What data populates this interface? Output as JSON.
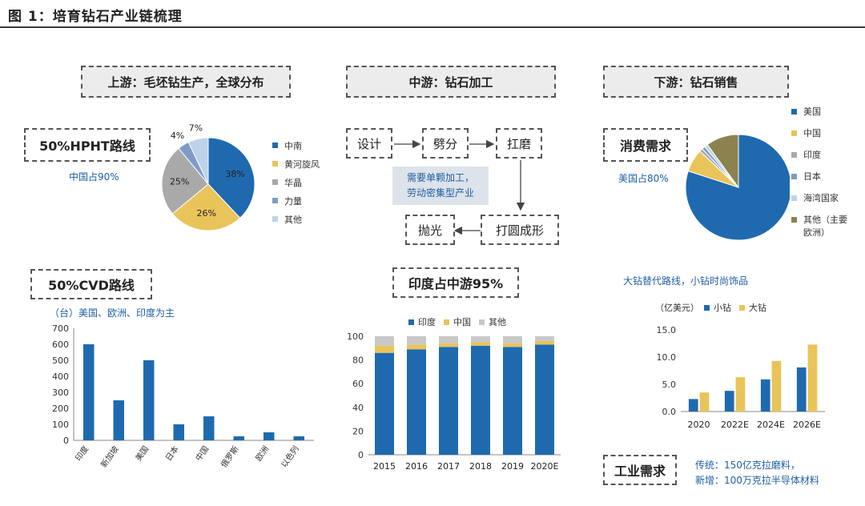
{
  "figure_title": "图 1：培育钻石产业链梳理",
  "upstream": {
    "header": "上游：毛坯钻生产，全球分布",
    "hpht_label": "50%HPHT路线",
    "hpht_note": "中国占90%",
    "cvd_label": "50%CVD路线",
    "cvd_note": "（台）美国、欧洲、印度为主"
  },
  "midstream": {
    "header": "中游：钻石加工",
    "steps": {
      "design": "设计",
      "cleave": "劈分",
      "grind": "扛磨",
      "round": "打圆成形",
      "polish": "抛光"
    },
    "note_line1": "需要单颗加工，",
    "note_line2": "劳动密集型产业",
    "india_label": "印度占中游95%"
  },
  "downstream": {
    "header": "下游：钻石销售",
    "consumer_label": "消费需求",
    "consumer_note": "美国占80%",
    "trend_note": "大钻替代路线，小钻时尚饰品",
    "industrial_label": "工业需求",
    "industrial_line1": "传统：150亿克拉磨料，",
    "industrial_line2": "新增：100万克拉半导体材料"
  },
  "colors": {
    "blue": "#1f6aaf",
    "yellow": "#e9c45a",
    "gray": "#a9a9a9",
    "steel": "#7e9cc7",
    "light": "#bdd3ea",
    "olive": "#8c8250",
    "accent_text": "#1f5fa6"
  },
  "chart_data": [
    {
      "id": "hpht-pie",
      "type": "pie",
      "labels": [
        "中南",
        "黄河旋风",
        "华晶",
        "力量",
        "其他"
      ],
      "values": [
        38,
        26,
        25,
        4,
        7
      ],
      "value_labels": [
        "38%",
        "26%",
        "25%",
        "4%",
        "7%"
      ],
      "colors": [
        "#1f6aaf",
        "#e9c45a",
        "#a9a9a9",
        "#7e9cc7",
        "#bdd3ea"
      ],
      "legend": "right"
    },
    {
      "id": "cvd-bar",
      "type": "bar",
      "categories": [
        "印度",
        "新加坡",
        "美国",
        "日本",
        "中国",
        "俄罗斯",
        "欧洲",
        "以色列"
      ],
      "values": [
        600,
        250,
        500,
        100,
        150,
        25,
        50,
        25
      ],
      "ylim": [
        0,
        700
      ],
      "yticks": [
        "0",
        "100",
        "200",
        "300",
        "400",
        "500",
        "600",
        "700"
      ],
      "color": "#1f6aaf"
    },
    {
      "id": "mid-stacked-bar",
      "type": "bar",
      "stacked": true,
      "categories": [
        "2015",
        "2016",
        "2017",
        "2018",
        "2019",
        "2020E"
      ],
      "series": [
        {
          "name": "印度",
          "values": [
            86,
            89,
            91,
            92,
            91,
            93
          ]
        },
        {
          "name": "中国",
          "values": [
            6,
            4,
            3,
            3,
            3,
            3
          ]
        },
        {
          "name": "其他",
          "values": [
            8,
            7,
            6,
            5,
            6,
            4
          ]
        }
      ],
      "colors": [
        "#1f6aaf",
        "#e9c45a",
        "#c8c8c8"
      ],
      "ylim": [
        0,
        100
      ],
      "yticks": [
        "0",
        "20",
        "40",
        "60",
        "80",
        "100"
      ],
      "legend": "top"
    },
    {
      "id": "consumer-pie",
      "type": "pie",
      "labels": [
        "美国",
        "中国",
        "印度",
        "日本",
        "海湾国家",
        "其他（主要欧洲）"
      ],
      "values": [
        80,
        7,
        1,
        1,
        1,
        10
      ],
      "colors": [
        "#1f6aaf",
        "#e9c45a",
        "#a9a9a9",
        "#7e9cc7",
        "#bdd3ea",
        "#8c8250"
      ],
      "legend": "right"
    },
    {
      "id": "size-bar",
      "type": "bar",
      "unit": "（亿美元）",
      "categories": [
        "2020",
        "2022E",
        "2024E",
        "2026E"
      ],
      "series": [
        {
          "name": "小钻",
          "values": [
            2.3,
            3.8,
            5.9,
            8.1
          ]
        },
        {
          "name": "大钻",
          "values": [
            3.5,
            6.3,
            9.3,
            12.3
          ]
        }
      ],
      "colors": [
        "#1f6aaf",
        "#e9c45a"
      ],
      "ylim": [
        0,
        15
      ],
      "yticks": [
        "0.0",
        "5.0",
        "10.0",
        "15.0"
      ],
      "legend": "top"
    }
  ]
}
